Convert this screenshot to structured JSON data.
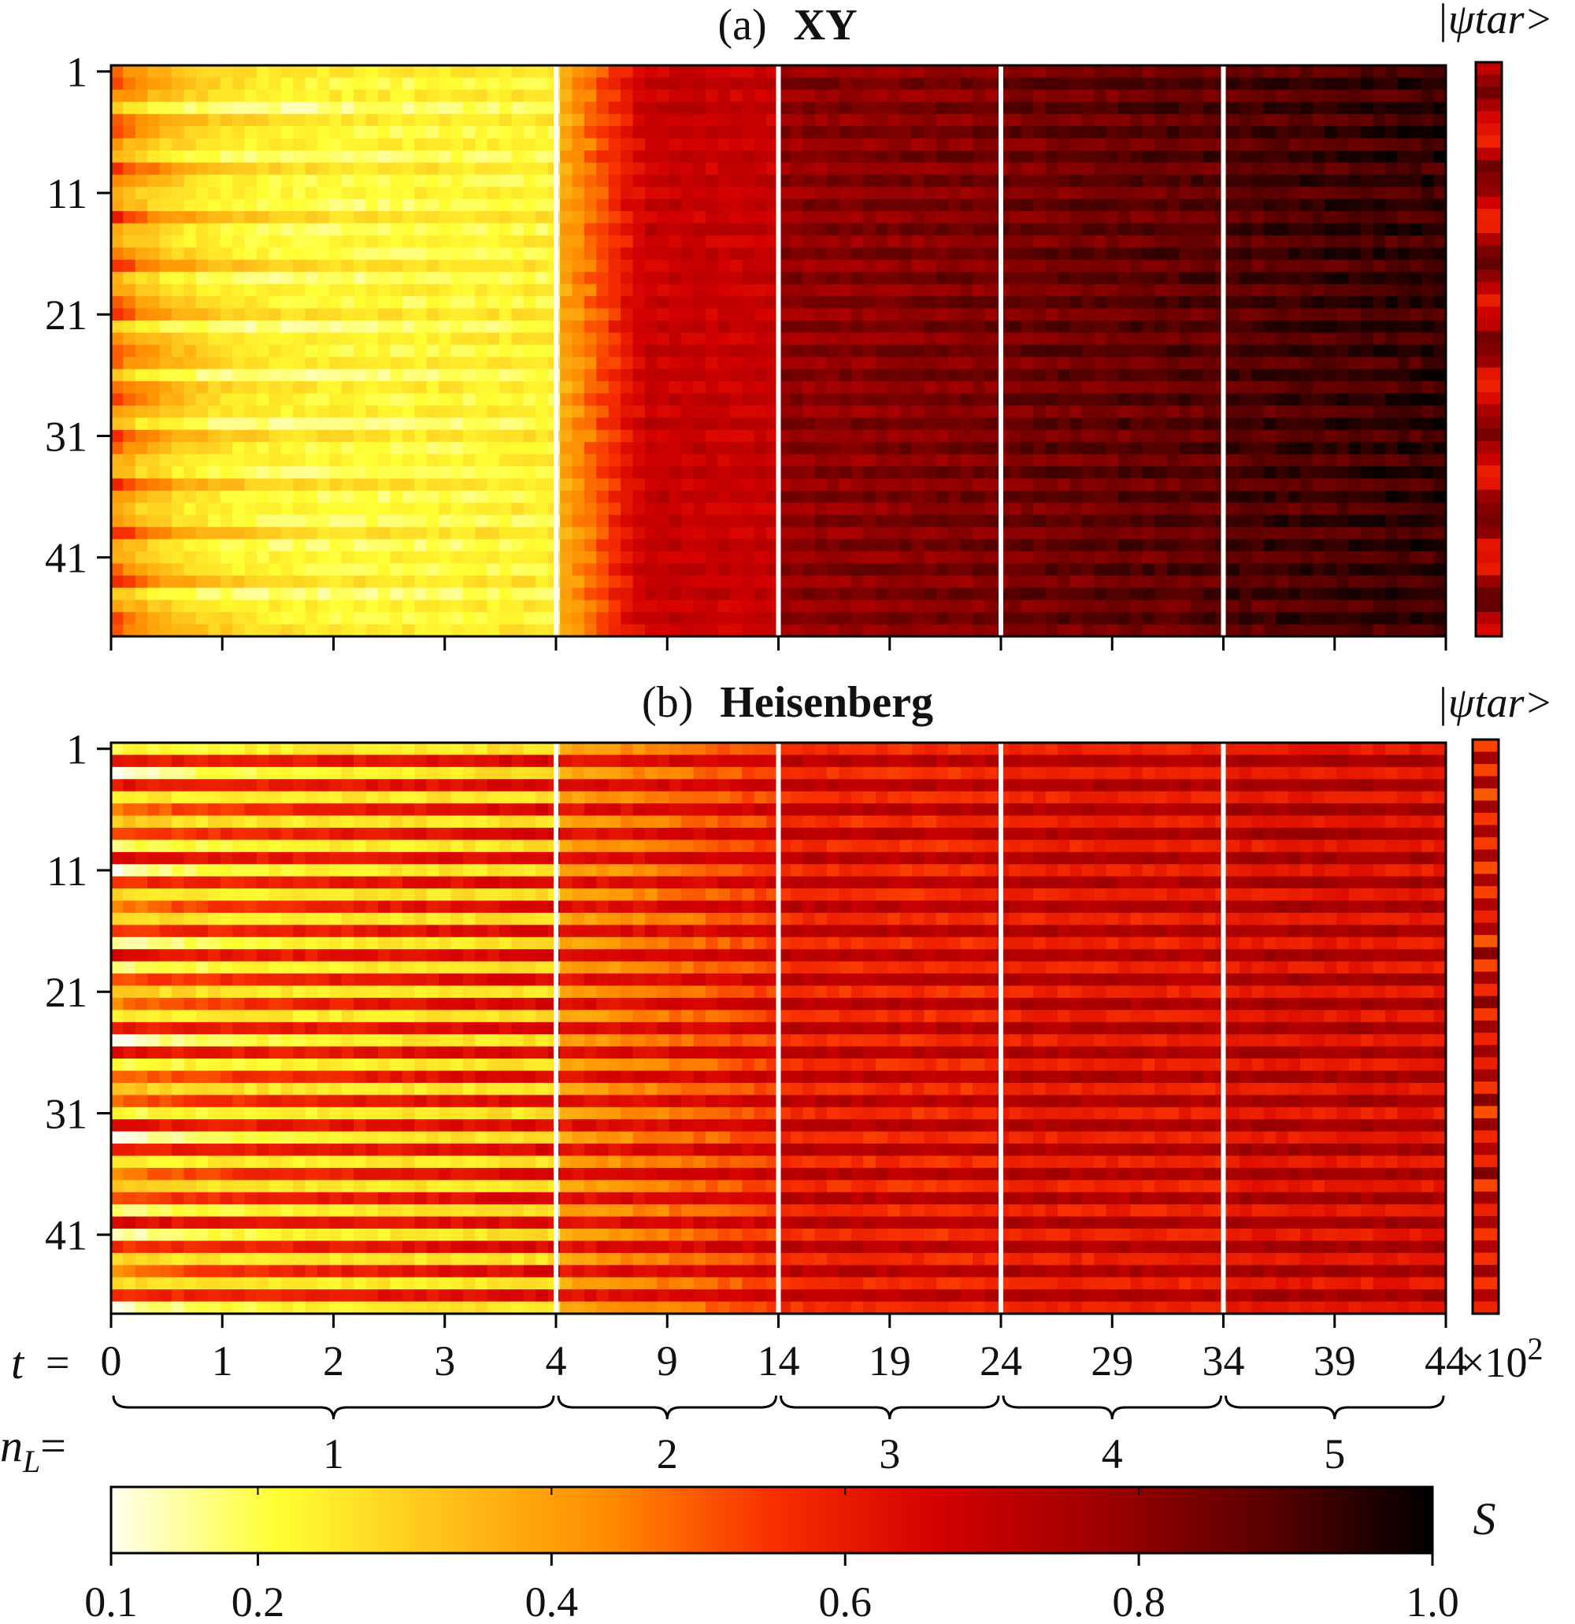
{
  "chart_data": [
    {
      "type": "heatmap",
      "panel_tag": "(a)",
      "title": "XY",
      "side_label": "|ψtar>",
      "y_ticks": [
        "1",
        "11",
        "21",
        "31",
        "41"
      ],
      "rows": 47,
      "segments": [
        4,
        1,
        1,
        1,
        1
      ]
    },
    {
      "type": "heatmap",
      "panel_tag": "(b)",
      "title": "Heisenberg",
      "side_label": "|ψtar>",
      "y_ticks": [
        "1",
        "11",
        "21",
        "31",
        "41"
      ],
      "rows": 47,
      "segments": [
        4,
        1,
        1,
        1,
        1
      ]
    }
  ],
  "x_axis": {
    "symbol": "t",
    "equals": "=",
    "ticks": [
      "0",
      "1",
      "2",
      "3",
      "4",
      "9",
      "14",
      "19",
      "24",
      "29",
      "34",
      "39",
      "44"
    ],
    "multiplier": "×10",
    "multiplier_exp": "2"
  },
  "layers": {
    "symbol": "n",
    "subscript": "L",
    "equals": "=",
    "values": [
      "1",
      "2",
      "3",
      "4",
      "5"
    ]
  },
  "colorbar": {
    "label": "S",
    "min": 0.1,
    "max": 1.0,
    "ticks": [
      "0.1",
      "0.2",
      "0.4",
      "0.6",
      "0.8",
      "1.0"
    ],
    "colormap": "hot_r",
    "colors": [
      "#fffff0",
      "#ffff33",
      "#ffc21a",
      "#ff8c00",
      "#f83000",
      "#d40000",
      "#9e0000",
      "#5a0000",
      "#000000"
    ]
  }
}
